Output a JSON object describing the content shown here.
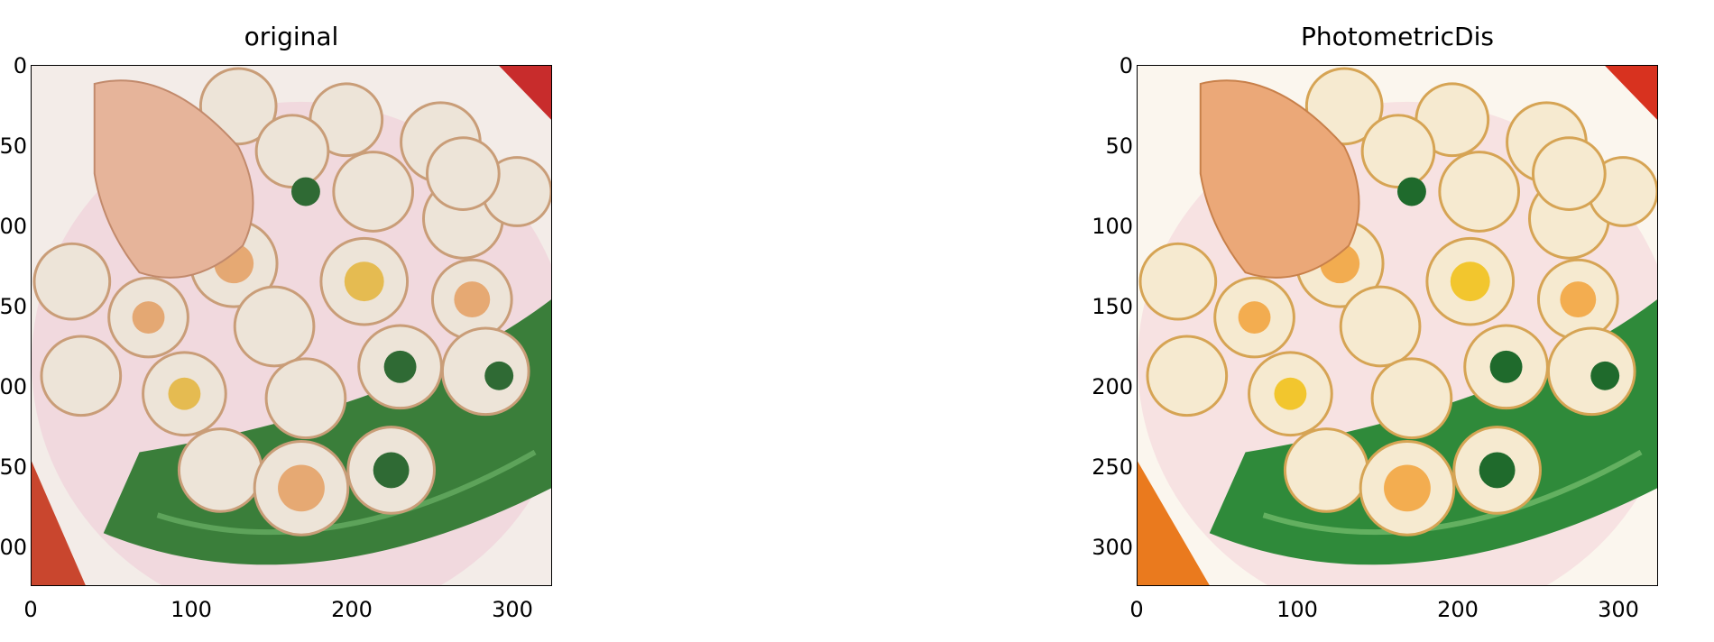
{
  "figures": [
    {
      "title": "original",
      "xticks": [
        "0",
        "100",
        "200",
        "300"
      ],
      "yticks": [
        "0",
        "50",
        "100",
        "150",
        "200",
        "250",
        "300"
      ]
    },
    {
      "title": "PhotometricDis",
      "xticks": [
        "0",
        "100",
        "200",
        "300"
      ],
      "yticks": [
        "0",
        "50",
        "100",
        "150",
        "200",
        "250",
        "300"
      ]
    }
  ]
}
